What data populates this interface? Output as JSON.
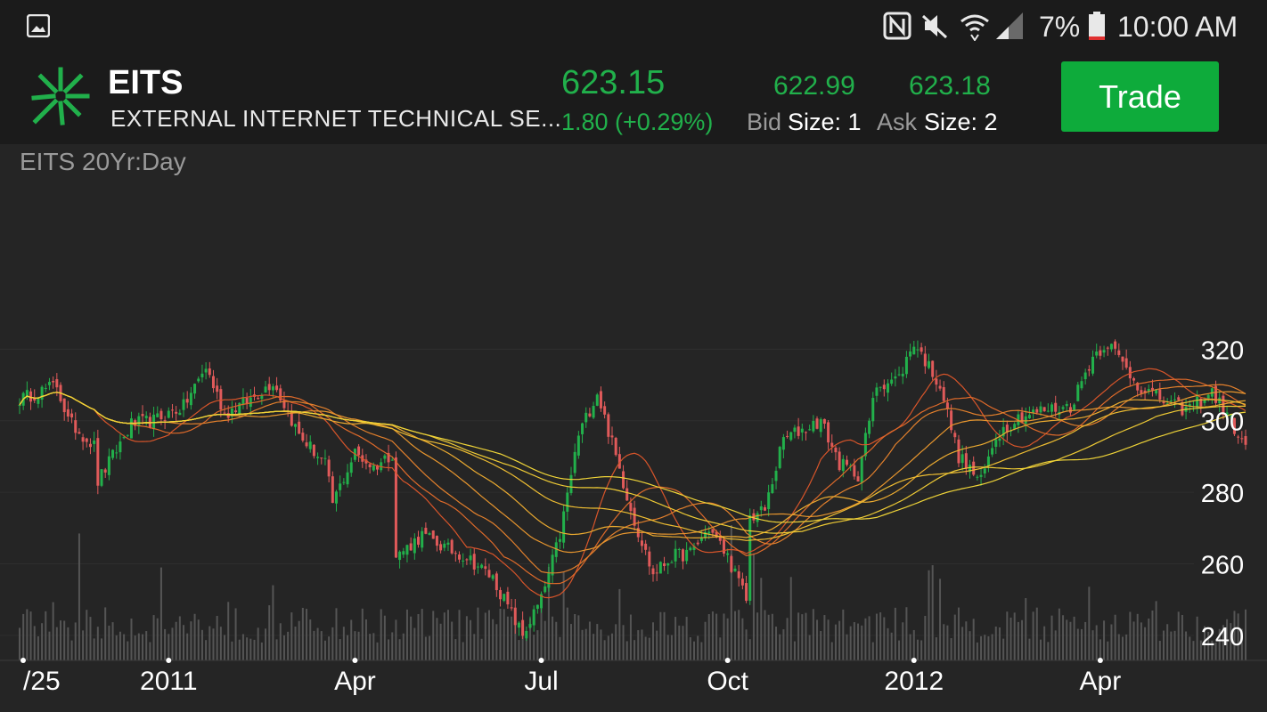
{
  "status_bar": {
    "icons": [
      "image-icon",
      "nfc-icon",
      "mute-icon",
      "wifi-icon",
      "signal-icon",
      "battery-icon"
    ],
    "battery": "7%",
    "time": "10:00 AM"
  },
  "header": {
    "ticker": "EITS",
    "company": "EXTERNAL INTERNET TECHNICAL SE...",
    "last_price": "623.15",
    "change": "1.80 (+0.29%)",
    "bid": "622.99",
    "ask": "623.18",
    "bid_label": "Bid",
    "ask_label": "Ask",
    "bid_size": "Size: 1",
    "ask_size": "Size: 2",
    "trade_label": "Trade",
    "accent_color": "#21b04b",
    "logo_icon": "starburst-logo-icon"
  },
  "chart_title": "EITS 20Yr:Day",
  "chart_data": {
    "type": "candlestick",
    "y_ticks": [
      320,
      300,
      280,
      260,
      240
    ],
    "ylim": [
      233,
      337
    ],
    "x_ticks": [
      "/25",
      "2011",
      "Apr",
      "Jul",
      "Oct",
      "2012",
      "Apr"
    ],
    "x_tick_pos": [
      0,
      40,
      90,
      140,
      190,
      240,
      290
    ],
    "num_days": 330,
    "close_anchors": [
      [
        0,
        306
      ],
      [
        10,
        310
      ],
      [
        13,
        300
      ],
      [
        20,
        293
      ],
      [
        21,
        283
      ],
      [
        30,
        299
      ],
      [
        36,
        300
      ],
      [
        44,
        304
      ],
      [
        50,
        315
      ],
      [
        55,
        302
      ],
      [
        62,
        306
      ],
      [
        68,
        311
      ],
      [
        75,
        296
      ],
      [
        82,
        288
      ],
      [
        84,
        277
      ],
      [
        90,
        291
      ],
      [
        95,
        287
      ],
      [
        100,
        291
      ],
      [
        101,
        262
      ],
      [
        108,
        268
      ],
      [
        115,
        264
      ],
      [
        120,
        262
      ],
      [
        127,
        256
      ],
      [
        135,
        240
      ],
      [
        140,
        250
      ],
      [
        145,
        268
      ],
      [
        150,
        296
      ],
      [
        155,
        308
      ],
      [
        160,
        290
      ],
      [
        165,
        272
      ],
      [
        170,
        257
      ],
      [
        175,
        262
      ],
      [
        180,
        263
      ],
      [
        185,
        270
      ],
      [
        190,
        262
      ],
      [
        195,
        250
      ],
      [
        196,
        273
      ],
      [
        200,
        275
      ],
      [
        205,
        295
      ],
      [
        211,
        298
      ],
      [
        215,
        300
      ],
      [
        220,
        288
      ],
      [
        225,
        285
      ],
      [
        230,
        310
      ],
      [
        236,
        312
      ],
      [
        240,
        322
      ],
      [
        247,
        310
      ],
      [
        252,
        290
      ],
      [
        258,
        283
      ],
      [
        262,
        296
      ],
      [
        268,
        301
      ],
      [
        275,
        303
      ],
      [
        282,
        304
      ],
      [
        288,
        318
      ],
      [
        292,
        322
      ],
      [
        300,
        310
      ],
      [
        308,
        305
      ],
      [
        313,
        303
      ],
      [
        320,
        308
      ],
      [
        325,
        300
      ],
      [
        330,
        290
      ]
    ],
    "moving_averages": [
      {
        "period": 20,
        "color": "#d8552a"
      },
      {
        "period": 30,
        "color": "#de6a2a"
      },
      {
        "period": 40,
        "color": "#e3802c"
      },
      {
        "period": 55,
        "color": "#e8962e"
      },
      {
        "period": 70,
        "color": "#ecab30"
      },
      {
        "period": 90,
        "color": "#eebd32"
      },
      {
        "period": 110,
        "color": "#efcb35"
      },
      {
        "period": 130,
        "color": "#efd438"
      }
    ],
    "up_color": "#22b04b",
    "down_color": "#e05a5a",
    "volume_color": "#555555",
    "grid": true
  }
}
